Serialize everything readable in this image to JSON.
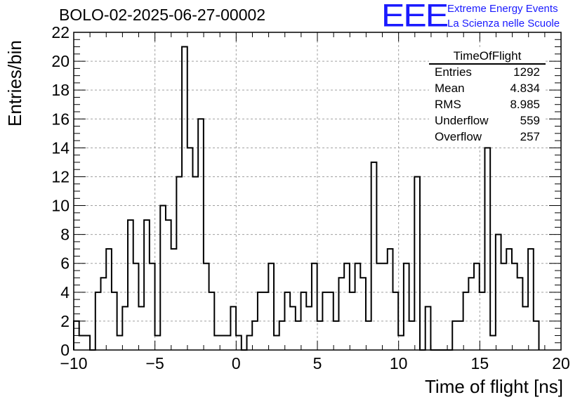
{
  "header": {
    "title": "BOLO-02-2025-06-27-00002",
    "logo_text": "EEE",
    "logo_line1": "Extreme Energy Events",
    "logo_line2": "La Scienza nelle Scuole"
  },
  "stats_box": {
    "name": "TimeOfFlight",
    "rows": [
      {
        "key": "Entries",
        "value": "1292"
      },
      {
        "key": "Mean",
        "value": "4.834"
      },
      {
        "key": "RMS",
        "value": "8.985"
      },
      {
        "key": "Underflow",
        "value": "559"
      },
      {
        "key": "Overflow",
        "value": "257"
      }
    ]
  },
  "colors": {
    "logo": "#1a1aff",
    "line": "#000000",
    "grid": "#a0a0a0"
  },
  "chart_data": {
    "type": "bar",
    "style": "step-histogram",
    "xlabel": "Time of flight [ns]",
    "ylabel": "Entries/bin",
    "xlim": [
      -10,
      20
    ],
    "ylim": [
      0,
      22
    ],
    "grid": true,
    "x_ticks": [
      -10,
      -5,
      0,
      5,
      10,
      15,
      20
    ],
    "y_ticks": [
      0,
      2,
      4,
      6,
      8,
      10,
      12,
      14,
      16,
      18,
      20,
      22
    ],
    "bin_width": 0.333,
    "bin_start": -10,
    "values": [
      2,
      1,
      1,
      0,
      4,
      5,
      7,
      4,
      1,
      3,
      9,
      6,
      3,
      9,
      6,
      1,
      10,
      9,
      7,
      12,
      21,
      14,
      12,
      16,
      6,
      4,
      1,
      1,
      1,
      3,
      1,
      0,
      1,
      2,
      4,
      4,
      6,
      1,
      2,
      4,
      3,
      2,
      4,
      3,
      6,
      2,
      4,
      4,
      2,
      5,
      6,
      4,
      6,
      5,
      2,
      13,
      6,
      6,
      7,
      4,
      1,
      6,
      2,
      12,
      0,
      3,
      0,
      0,
      0,
      0,
      2,
      2,
      4,
      5,
      6,
      4,
      14,
      1,
      8,
      6,
      7,
      6,
      5,
      3,
      7,
      2
    ]
  }
}
